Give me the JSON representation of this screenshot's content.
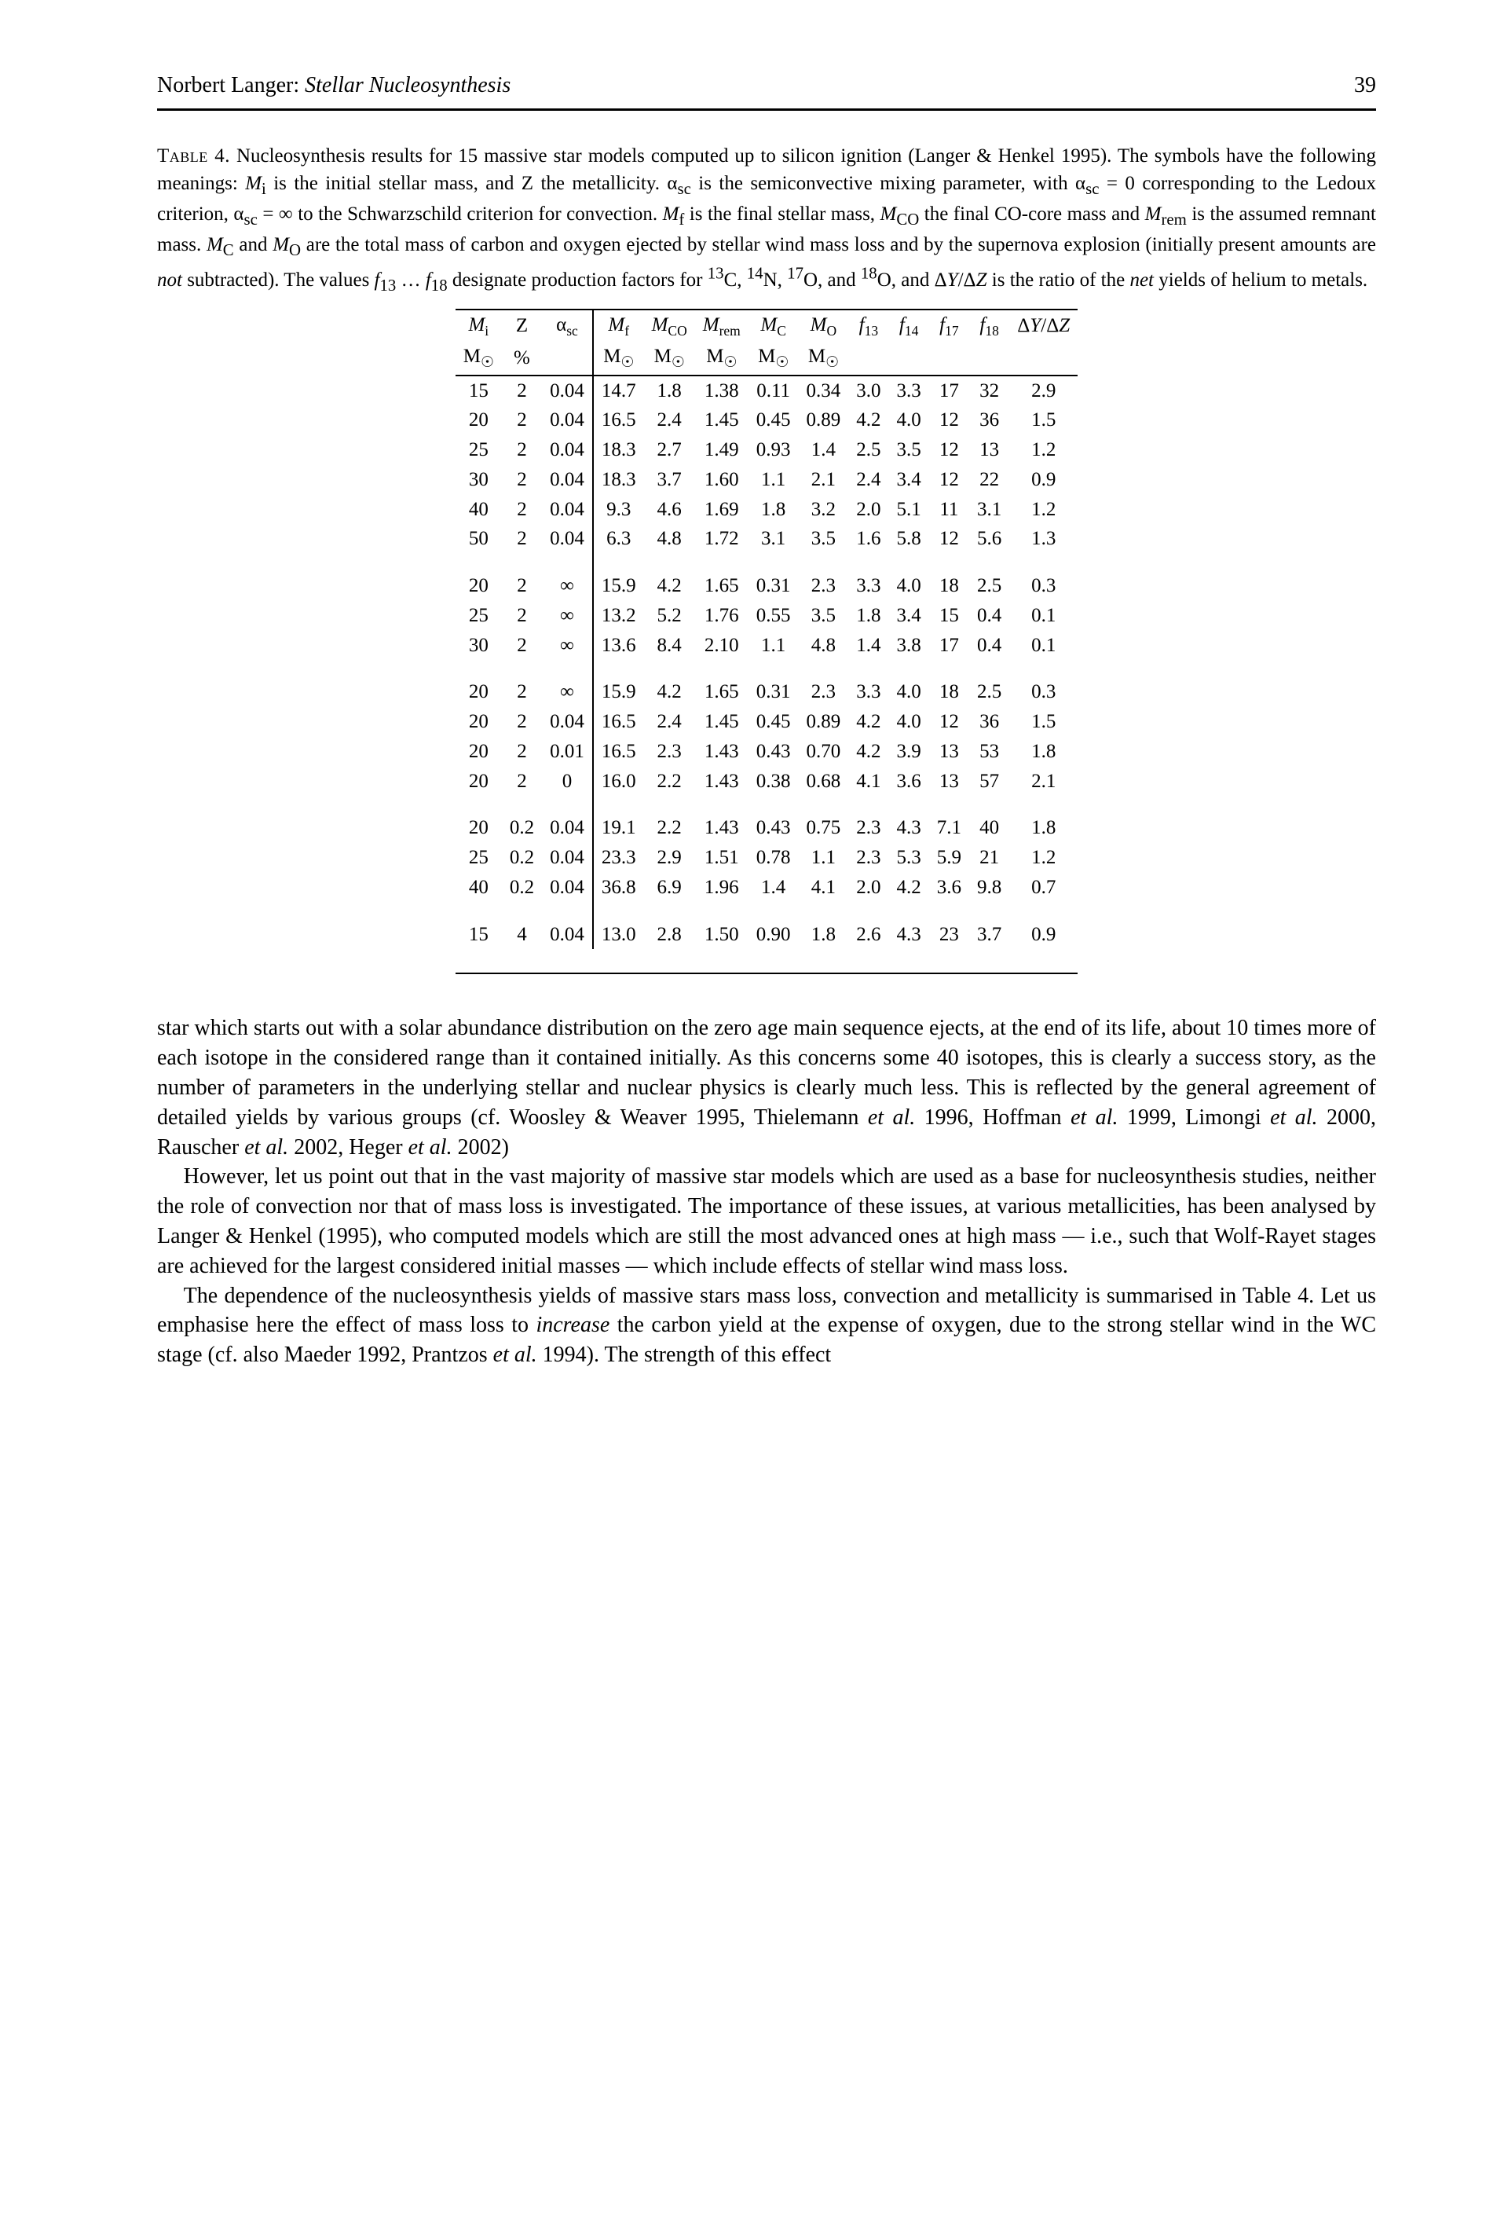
{
  "header": {
    "author": "Norbert Langer:",
    "title": "Stellar Nucleosynthesis",
    "page": "39"
  },
  "table": {
    "label": "Table 4.",
    "caption_html": "Nucleosynthesis results for 15 massive star models computed up to silicon ignition (Langer & Henkel 1995). The symbols have the following meanings: <i>M</i><sub>i</sub> is the initial stellar mass, and Z the metallicity. α<sub>sc</sub> is the semiconvective mixing parameter, with α<sub>sc</sub> = 0 corresponding to the Ledoux criterion, α<sub>sc</sub> = ∞ to the Schwarzschild criterion for convection. <i>M</i><sub>f</sub> is the final stellar mass, <i>M</i><sub>CO</sub> the final CO-core mass and <i>M</i><sub>rem</sub> is the assumed remnant mass. <i>M</i><sub>C</sub> and <i>M</i><sub>O</sub> are the total mass of carbon and oxygen ejected by stellar wind mass loss and by the supernova explosion (initially present amounts are <i>not</i> subtracted). The values <i>f</i><sub>13</sub> … <i>f</i><sub>18</sub> designate production factors for <sup>13</sup>C, <sup>14</sup>N, <sup>17</sup>O, and <sup>18</sup>O, and Δ<i>Y</i>/Δ<i>Z</i> is the ratio of the <i>net</i> yields of helium to metals.",
    "columns_row1": [
      "M_i",
      "Z",
      "α_sc",
      "M_f",
      "M_CO",
      "M_rem",
      "M_C",
      "M_O",
      "f_13",
      "f_14",
      "f_17",
      "f_18",
      "ΔY/ΔZ"
    ],
    "columns_row2": [
      "M_⊙",
      "%",
      "",
      "M_⊙",
      "M_⊙",
      "M_⊙",
      "M_⊙",
      "M_⊙",
      "",
      "",
      "",
      "",
      ""
    ],
    "groups": [
      [
        [
          "15",
          "2",
          "0.04",
          "14.7",
          "1.8",
          "1.38",
          "0.11",
          "0.34",
          "3.0",
          "3.3",
          "17",
          "32",
          "2.9"
        ],
        [
          "20",
          "2",
          "0.04",
          "16.5",
          "2.4",
          "1.45",
          "0.45",
          "0.89",
          "4.2",
          "4.0",
          "12",
          "36",
          "1.5"
        ],
        [
          "25",
          "2",
          "0.04",
          "18.3",
          "2.7",
          "1.49",
          "0.93",
          "1.4",
          "2.5",
          "3.5",
          "12",
          "13",
          "1.2"
        ],
        [
          "30",
          "2",
          "0.04",
          "18.3",
          "3.7",
          "1.60",
          "1.1",
          "2.1",
          "2.4",
          "3.4",
          "12",
          "22",
          "0.9"
        ],
        [
          "40",
          "2",
          "0.04",
          "9.3",
          "4.6",
          "1.69",
          "1.8",
          "3.2",
          "2.0",
          "5.1",
          "11",
          "3.1",
          "1.2"
        ],
        [
          "50",
          "2",
          "0.04",
          "6.3",
          "4.8",
          "1.72",
          "3.1",
          "3.5",
          "1.6",
          "5.8",
          "12",
          "5.6",
          "1.3"
        ]
      ],
      [
        [
          "20",
          "2",
          "∞",
          "15.9",
          "4.2",
          "1.65",
          "0.31",
          "2.3",
          "3.3",
          "4.0",
          "18",
          "2.5",
          "0.3"
        ],
        [
          "25",
          "2",
          "∞",
          "13.2",
          "5.2",
          "1.76",
          "0.55",
          "3.5",
          "1.8",
          "3.4",
          "15",
          "0.4",
          "0.1"
        ],
        [
          "30",
          "2",
          "∞",
          "13.6",
          "8.4",
          "2.10",
          "1.1",
          "4.8",
          "1.4",
          "3.8",
          "17",
          "0.4",
          "0.1"
        ]
      ],
      [
        [
          "20",
          "2",
          "∞",
          "15.9",
          "4.2",
          "1.65",
          "0.31",
          "2.3",
          "3.3",
          "4.0",
          "18",
          "2.5",
          "0.3"
        ],
        [
          "20",
          "2",
          "0.04",
          "16.5",
          "2.4",
          "1.45",
          "0.45",
          "0.89",
          "4.2",
          "4.0",
          "12",
          "36",
          "1.5"
        ],
        [
          "20",
          "2",
          "0.01",
          "16.5",
          "2.3",
          "1.43",
          "0.43",
          "0.70",
          "4.2",
          "3.9",
          "13",
          "53",
          "1.8"
        ],
        [
          "20",
          "2",
          "0",
          "16.0",
          "2.2",
          "1.43",
          "0.38",
          "0.68",
          "4.1",
          "3.6",
          "13",
          "57",
          "2.1"
        ]
      ],
      [
        [
          "20",
          "0.2",
          "0.04",
          "19.1",
          "2.2",
          "1.43",
          "0.43",
          "0.75",
          "2.3",
          "4.3",
          "7.1",
          "40",
          "1.8"
        ],
        [
          "25",
          "0.2",
          "0.04",
          "23.3",
          "2.9",
          "1.51",
          "0.78",
          "1.1",
          "2.3",
          "5.3",
          "5.9",
          "21",
          "1.2"
        ],
        [
          "40",
          "0.2",
          "0.04",
          "36.8",
          "6.9",
          "1.96",
          "1.4",
          "4.1",
          "2.0",
          "4.2",
          "3.6",
          "9.8",
          "0.7"
        ]
      ],
      [
        [
          "15",
          "4",
          "0.04",
          "13.0",
          "2.8",
          "1.50",
          "0.90",
          "1.8",
          "2.6",
          "4.3",
          "23",
          "3.7",
          "0.9"
        ]
      ]
    ]
  },
  "body": {
    "p1": "star which starts out with a solar abundance distribution on the zero age main sequence ejects, at the end of its life, about 10 times more of each isotope in the considered range than it contained initially. As this concerns some 40 isotopes, this is clearly a success story, as the number of parameters in the underlying stellar and nuclear physics is clearly much less. This is reflected by the general agreement of detailed yields by various groups (cf. Woosley & Weaver 1995, Thielemann et al. 1996, Hoffman et al. 1999, Limongi et al. 2000, Rauscher et al. 2002, Heger et al. 2002)",
    "p2": "However, let us point out that in the vast majority of massive star models which are used as a base for nucleosynthesis studies, neither the role of convection nor that of mass loss is investigated. The importance of these issues, at various metallicities, has been analysed by Langer & Henkel (1995), who computed models which are still the most advanced ones at high mass — i.e., such that Wolf-Rayet stages are achieved for the largest considered initial masses — which include effects of stellar wind mass loss.",
    "p3": "The dependence of the nucleosynthesis yields of massive stars mass loss, convection and metallicity is summarised in Table 4. Let us emphasise here the effect of mass loss to increase the carbon yield at the expense of oxygen, due to the strong stellar wind in the WC stage (cf. also Maeder 1992, Prantzos et al. 1994). The strength of this effect"
  }
}
